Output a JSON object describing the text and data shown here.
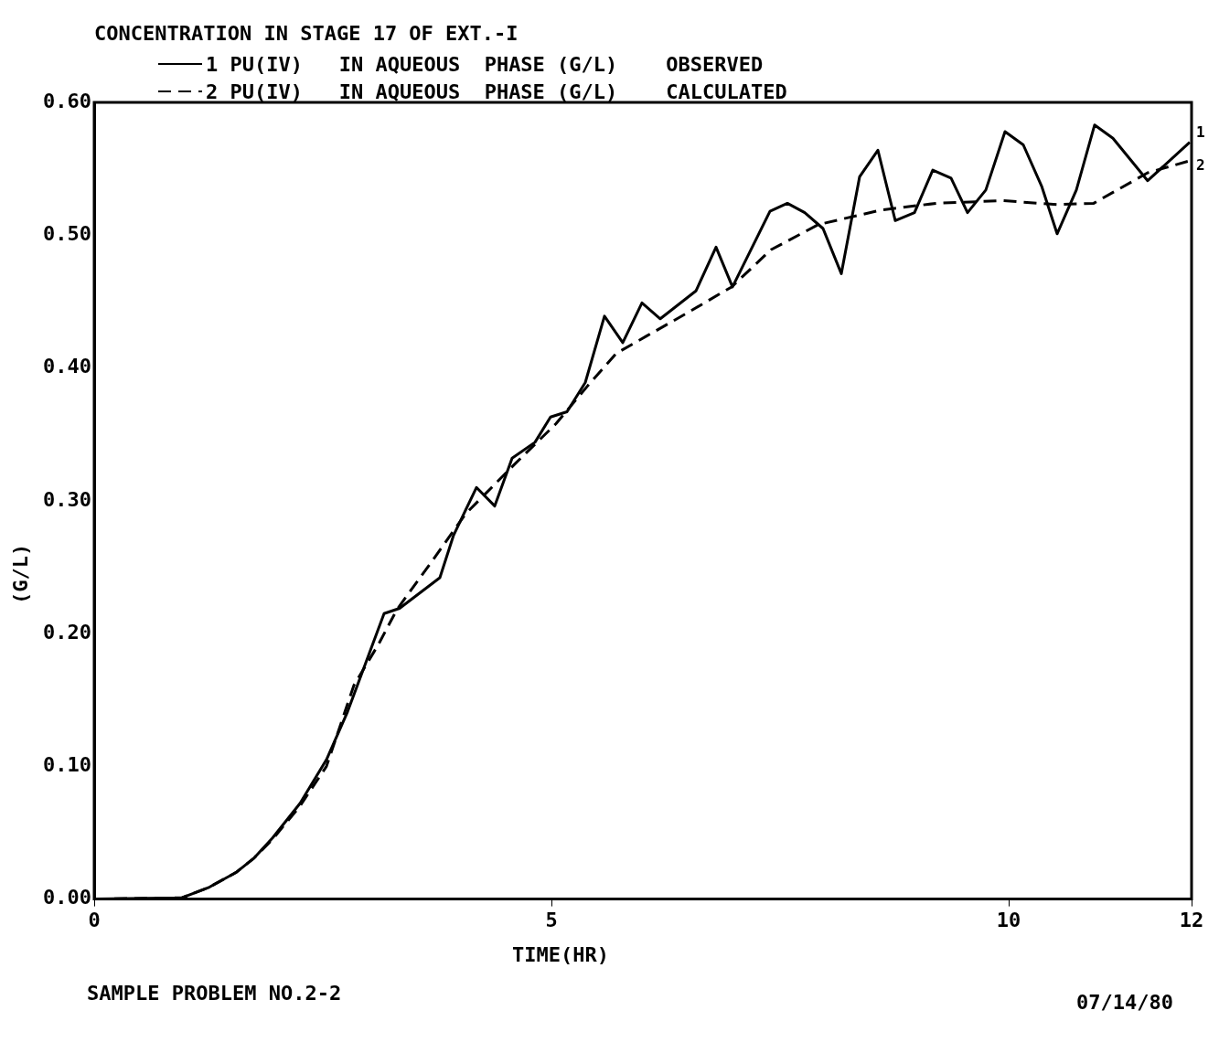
{
  "chart_data": {
    "type": "line",
    "title": "CONCENTRATION IN STAGE 17 OF EXT.-I",
    "xlabel": "TIME(HR)",
    "ylabel": "(G/L)",
    "xlim": [
      0,
      12
    ],
    "xticks": [
      0,
      5,
      10,
      12
    ],
    "ylim": [
      0,
      0.6
    ],
    "yticks": [
      {
        "value": 0,
        "label": "0.00"
      },
      {
        "value": 0.1,
        "label": "0.10"
      },
      {
        "value": 0.2,
        "label": "0.20"
      },
      {
        "value": 0.3,
        "label": "0.30"
      },
      {
        "value": 0.4,
        "label": "0.40"
      },
      {
        "value": 0.5,
        "label": "0.50"
      },
      {
        "value": 0.6,
        "label": "0.60"
      }
    ],
    "grid": false,
    "legend": "top",
    "marker": "none",
    "series": [
      {
        "name": "1 PU(IV)   IN AQUEOUS  PHASE (G/L)    OBSERVED",
        "color": "#000000",
        "line_style": "solid",
        "x": [
          0,
          0.96,
          1.26,
          1.55,
          1.75,
          1.95,
          2.25,
          2.54,
          2.77,
          3.17,
          3.34,
          3.78,
          3.93,
          4.18,
          4.38,
          4.57,
          4.82,
          4.99,
          5.17,
          5.37,
          5.58,
          5.78,
          5.99,
          6.19,
          6.58,
          6.8,
          6.98,
          7.39,
          7.58,
          7.77,
          7.97,
          8.17,
          8.37,
          8.57,
          8.76,
          8.97,
          9.17,
          9.37,
          9.55,
          9.75,
          9.96,
          10.16,
          10.36,
          10.53,
          10.74,
          10.94,
          11.14,
          11.52,
          11.98
        ],
        "values": [
          0,
          0.001,
          0.009,
          0.02,
          0.031,
          0.046,
          0.072,
          0.105,
          0.141,
          0.215,
          0.219,
          0.242,
          0.274,
          0.31,
          0.296,
          0.332,
          0.344,
          0.363,
          0.367,
          0.389,
          0.439,
          0.419,
          0.449,
          0.437,
          0.458,
          0.491,
          0.461,
          0.518,
          0.524,
          0.517,
          0.505,
          0.471,
          0.544,
          0.564,
          0.511,
          0.517,
          0.549,
          0.543,
          0.517,
          0.534,
          0.578,
          0.568,
          0.537,
          0.501,
          0.534,
          0.583,
          0.573,
          0.541,
          0.57
        ]
      },
      {
        "name": "2 PU(IV)   IN AQUEOUS  PHASE (G/L)    CALCULATED",
        "color": "#000000",
        "line_style": "dashed",
        "x": [
          0,
          0.96,
          1.26,
          1.55,
          1.75,
          1.95,
          2.25,
          2.54,
          2.84,
          3.11,
          3.31,
          3.7,
          4.06,
          4.59,
          5.05,
          5.39,
          5.71,
          6.04,
          6.5,
          6.97,
          7.4,
          7.92,
          8.61,
          9.21,
          9.94,
          10.53,
          10.93,
          11.52,
          11.98
        ],
        "values": [
          0,
          0.001,
          0.009,
          0.02,
          0.031,
          0.045,
          0.07,
          0.1,
          0.161,
          0.192,
          0.218,
          0.255,
          0.29,
          0.327,
          0.358,
          0.386,
          0.411,
          0.424,
          0.442,
          0.461,
          0.489,
          0.508,
          0.519,
          0.524,
          0.526,
          0.523,
          0.524,
          0.547,
          0.556
        ]
      }
    ],
    "annotations": [
      {
        "text": "1",
        "x": 12,
        "y": 0.57
      },
      {
        "text": "2",
        "x": 12,
        "y": 0.556
      },
      "SAMPLE PROBLEM NO.2-2",
      "07/14/80"
    ]
  }
}
